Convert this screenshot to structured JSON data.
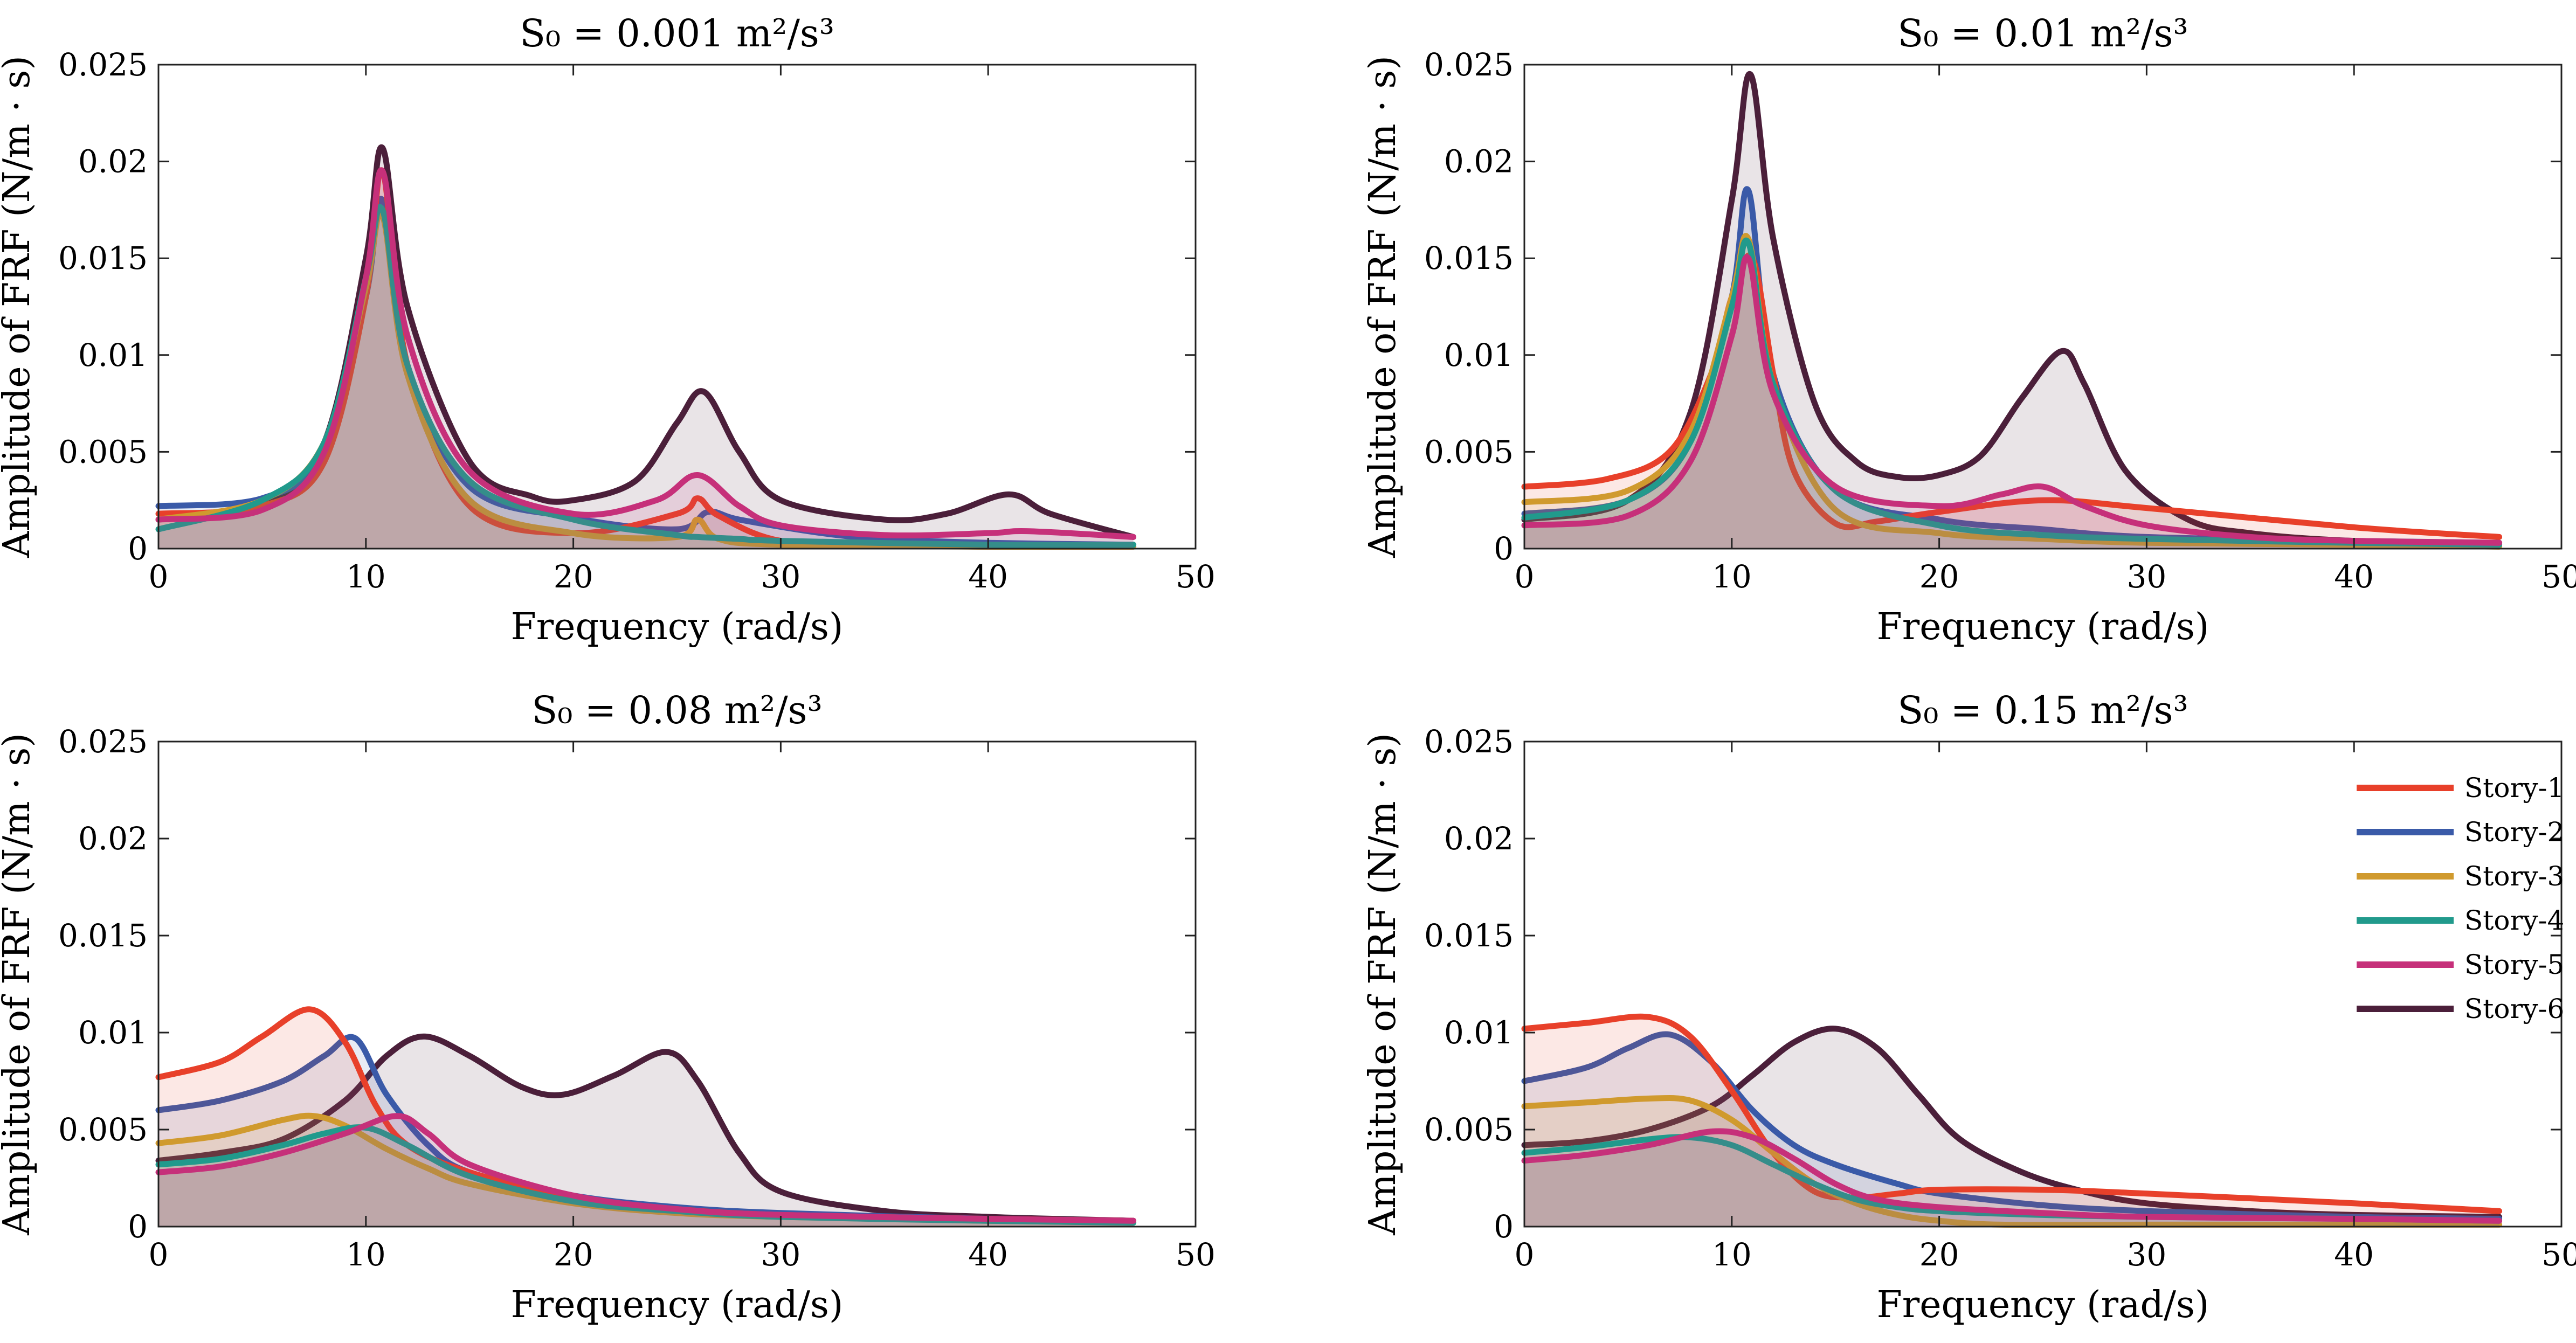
{
  "chart_data": [
    {
      "type": "line",
      "title": "S₀ = 0.001 m²/s³",
      "xlabel": "Frequency (rad/s)",
      "ylabel": "Amplitude of FRF (N/m · s)",
      "xlim": [
        0,
        50
      ],
      "ylim": [
        0,
        0.025
      ],
      "xticks": [
        "0",
        "10",
        "20",
        "30",
        "40",
        "50"
      ],
      "yticks": [
        "0",
        "0.005",
        "0.01",
        "0.015",
        "0.02",
        "0.025"
      ],
      "series": [
        {
          "name": "Story-1",
          "x": [
            0,
            5,
            8,
            10,
            10.8,
            12,
            15,
            20,
            25,
            26,
            27,
            30,
            35,
            40,
            47
          ],
          "y": [
            0.0018,
            0.0022,
            0.0045,
            0.013,
            0.0195,
            0.0095,
            0.0022,
            0.0008,
            0.0018,
            0.0026,
            0.0017,
            0.0004,
            0.0002,
            0.0001,
            0.0001
          ]
        },
        {
          "name": "Story-2",
          "x": [
            0,
            5,
            8,
            10,
            10.8,
            12,
            15,
            20,
            25,
            26.5,
            28,
            32,
            35,
            40,
            47
          ],
          "y": [
            0.0022,
            0.0026,
            0.005,
            0.013,
            0.018,
            0.0095,
            0.0032,
            0.0016,
            0.001,
            0.0019,
            0.0015,
            0.0008,
            0.0005,
            0.0003,
            0.0002
          ]
        },
        {
          "name": "Story-3",
          "x": [
            0,
            5,
            8,
            10,
            10.8,
            12,
            15,
            20,
            25,
            26,
            27,
            30,
            40,
            47
          ],
          "y": [
            0.0015,
            0.0025,
            0.0055,
            0.0135,
            0.0172,
            0.009,
            0.0025,
            0.0008,
            0.0006,
            0.0015,
            0.0005,
            0.0002,
            0.0001,
            0.0001
          ]
        },
        {
          "name": "Story-4",
          "x": [
            0,
            5,
            8,
            10,
            10.8,
            12,
            15,
            20,
            25,
            26,
            28,
            30,
            40,
            47
          ],
          "y": [
            0.001,
            0.0025,
            0.0055,
            0.014,
            0.0175,
            0.0095,
            0.0035,
            0.0015,
            0.0007,
            0.0006,
            0.0005,
            0.0004,
            0.0002,
            0.0002
          ]
        },
        {
          "name": "Story-5",
          "x": [
            0,
            5,
            8,
            10,
            10.8,
            12,
            15,
            20,
            24,
            26,
            28,
            30,
            35,
            40,
            42,
            47
          ],
          "y": [
            0.0015,
            0.002,
            0.005,
            0.014,
            0.0195,
            0.011,
            0.004,
            0.0018,
            0.0025,
            0.0038,
            0.0022,
            0.0012,
            0.0007,
            0.0008,
            0.0009,
            0.0006
          ]
        },
        {
          "name": "Story-6",
          "x": [
            0,
            5,
            8,
            10,
            10.8,
            12,
            15,
            18,
            20,
            23,
            25,
            26.3,
            28,
            30,
            35,
            38,
            41,
            43,
            47
          ],
          "y": [
            0.0015,
            0.0022,
            0.0055,
            0.015,
            0.0207,
            0.0125,
            0.0045,
            0.0027,
            0.0025,
            0.0035,
            0.0065,
            0.0081,
            0.005,
            0.0025,
            0.0015,
            0.0018,
            0.0028,
            0.0018,
            0.0006
          ]
        }
      ]
    },
    {
      "type": "line",
      "title": "S₀ = 0.01 m²/s³",
      "xlabel": "Frequency (rad/s)",
      "ylabel": "Amplitude of FRF (N/m · s)",
      "xlim": [
        0,
        50
      ],
      "ylim": [
        0,
        0.025
      ],
      "xticks": [
        "0",
        "10",
        "20",
        "30",
        "40",
        "50"
      ],
      "yticks": [
        "0",
        "0.005",
        "0.01",
        "0.015",
        "0.02",
        "0.025"
      ],
      "series": [
        {
          "name": "Story-1",
          "x": [
            0,
            4,
            7,
            9,
            10,
            11,
            12,
            13,
            15,
            17,
            20,
            25,
            30,
            40,
            47
          ],
          "y": [
            0.0032,
            0.0036,
            0.005,
            0.009,
            0.013,
            0.015,
            0.009,
            0.004,
            0.0013,
            0.0014,
            0.0019,
            0.0025,
            0.0021,
            0.0011,
            0.0006
          ]
        },
        {
          "name": "Story-2",
          "x": [
            0,
            5,
            8,
            10,
            10.8,
            12,
            15,
            20,
            25,
            30,
            40,
            47
          ],
          "y": [
            0.0018,
            0.0025,
            0.0055,
            0.013,
            0.0185,
            0.009,
            0.003,
            0.0015,
            0.001,
            0.0006,
            0.0004,
            0.0003
          ]
        },
        {
          "name": "Story-3",
          "x": [
            0,
            5,
            8,
            10,
            10.8,
            12,
            15,
            20,
            25,
            30,
            40,
            47
          ],
          "y": [
            0.0024,
            0.003,
            0.006,
            0.013,
            0.016,
            0.0085,
            0.002,
            0.0008,
            0.0005,
            0.0003,
            0.0002,
            0.0001
          ]
        },
        {
          "name": "Story-4",
          "x": [
            0,
            5,
            8,
            10,
            10.8,
            12,
            15,
            20,
            25,
            30,
            40,
            47
          ],
          "y": [
            0.0016,
            0.0025,
            0.0055,
            0.0125,
            0.0158,
            0.0085,
            0.003,
            0.0012,
            0.0007,
            0.0005,
            0.0003,
            0.0002
          ]
        },
        {
          "name": "Story-5",
          "x": [
            0,
            5,
            8,
            10,
            10.8,
            12,
            15,
            20,
            23,
            25,
            27,
            30,
            35,
            40,
            47
          ],
          "y": [
            0.0012,
            0.0017,
            0.0045,
            0.011,
            0.015,
            0.008,
            0.0032,
            0.0022,
            0.0028,
            0.0032,
            0.0022,
            0.0012,
            0.0006,
            0.0004,
            0.0003
          ]
        },
        {
          "name": "Story-6",
          "x": [
            0,
            5,
            8,
            10,
            10.9,
            12,
            14,
            16,
            18,
            20,
            22,
            24,
            25.9,
            27,
            29,
            32,
            35,
            40,
            47
          ],
          "y": [
            0.0015,
            0.0025,
            0.007,
            0.018,
            0.0245,
            0.016,
            0.0075,
            0.0045,
            0.0037,
            0.0038,
            0.0048,
            0.0078,
            0.0102,
            0.0085,
            0.004,
            0.0015,
            0.0008,
            0.0004,
            0.0003
          ]
        }
      ]
    },
    {
      "type": "line",
      "title": "S₀ = 0.08 m²/s³",
      "xlabel": "Frequency (rad/s)",
      "ylabel": "Amplitude of FRF (N/m · s)",
      "xlim": [
        0,
        50
      ],
      "ylim": [
        0,
        0.025
      ],
      "xticks": [
        "0",
        "10",
        "20",
        "30",
        "40",
        "50"
      ],
      "yticks": [
        "0",
        "0.005",
        "0.01",
        "0.015",
        "0.02",
        "0.025"
      ],
      "series": [
        {
          "name": "Story-1",
          "x": [
            0,
            3,
            5,
            7.3,
            9,
            10.5,
            12,
            15,
            20,
            25,
            30,
            40,
            47
          ],
          "y": [
            0.0077,
            0.0085,
            0.0098,
            0.0112,
            0.0095,
            0.0062,
            0.0042,
            0.0028,
            0.0015,
            0.0009,
            0.0006,
            0.0004,
            0.0003
          ]
        },
        {
          "name": "Story-2",
          "x": [
            0,
            3,
            6,
            8,
            9.5,
            11,
            13,
            15,
            20,
            25,
            30,
            40,
            47
          ],
          "y": [
            0.006,
            0.0065,
            0.0075,
            0.0088,
            0.0097,
            0.0068,
            0.0042,
            0.0028,
            0.0016,
            0.001,
            0.0007,
            0.0004,
            0.0003
          ]
        },
        {
          "name": "Story-3",
          "x": [
            0,
            3,
            6,
            7.5,
            9,
            11,
            13,
            15,
            20,
            25,
            30,
            40,
            47
          ],
          "y": [
            0.0043,
            0.0047,
            0.0055,
            0.0057,
            0.0052,
            0.004,
            0.003,
            0.0022,
            0.0012,
            0.0007,
            0.0005,
            0.0003,
            0.0002
          ]
        },
        {
          "name": "Story-4",
          "x": [
            0,
            3,
            6,
            8,
            10,
            12,
            15,
            20,
            25,
            30,
            40,
            47
          ],
          "y": [
            0.0032,
            0.0035,
            0.0042,
            0.0048,
            0.0051,
            0.0042,
            0.0026,
            0.0013,
            0.0008,
            0.0005,
            0.0003,
            0.0002
          ]
        },
        {
          "name": "Story-5",
          "x": [
            0,
            3,
            6,
            9,
            11.5,
            13,
            15,
            20,
            25,
            30,
            40,
            47
          ],
          "y": [
            0.0028,
            0.0031,
            0.0038,
            0.0048,
            0.0057,
            0.0048,
            0.0032,
            0.0016,
            0.0009,
            0.0006,
            0.0004,
            0.0003
          ]
        },
        {
          "name": "Story-6",
          "x": [
            0,
            3,
            6,
            9,
            11,
            12.8,
            15,
            17.5,
            19.5,
            22,
            24.5,
            26,
            28,
            30,
            35,
            40,
            47
          ],
          "y": [
            0.0034,
            0.0038,
            0.0045,
            0.0065,
            0.0088,
            0.0098,
            0.0088,
            0.0072,
            0.0068,
            0.0078,
            0.009,
            0.0075,
            0.0038,
            0.0018,
            0.0008,
            0.0005,
            0.0003
          ]
        }
      ]
    },
    {
      "type": "line",
      "title": "S₀ = 0.15 m²/s³",
      "xlabel": "Frequency (rad/s)",
      "ylabel": "Amplitude of FRF (N/m · s)",
      "xlim": [
        0,
        50
      ],
      "ylim": [
        0,
        0.025
      ],
      "xticks": [
        "0",
        "10",
        "20",
        "30",
        "40",
        "50"
      ],
      "yticks": [
        "0",
        "0.005",
        "0.01",
        "0.015",
        "0.02",
        "0.025"
      ],
      "series": [
        {
          "name": "Story-1",
          "x": [
            0,
            3,
            6,
            8,
            10,
            12,
            14,
            16,
            18,
            20,
            25,
            30,
            40,
            47
          ],
          "y": [
            0.0102,
            0.0105,
            0.0108,
            0.0098,
            0.007,
            0.0038,
            0.0018,
            0.0015,
            0.0017,
            0.0019,
            0.0019,
            0.0017,
            0.0012,
            0.0008
          ]
        },
        {
          "name": "Story-2",
          "x": [
            0,
            3,
            5,
            7,
            9,
            11,
            13,
            15,
            18,
            20,
            25,
            30,
            40,
            47
          ],
          "y": [
            0.0075,
            0.0082,
            0.0092,
            0.0099,
            0.0085,
            0.006,
            0.0042,
            0.0032,
            0.0022,
            0.0017,
            0.0011,
            0.0008,
            0.0005,
            0.0004
          ]
        },
        {
          "name": "Story-3",
          "x": [
            0,
            3,
            6,
            8,
            10,
            12,
            14,
            16,
            18,
            20,
            23,
            30,
            40,
            47
          ],
          "y": [
            0.0062,
            0.0064,
            0.0066,
            0.0065,
            0.0055,
            0.0038,
            0.0022,
            0.0012,
            0.0006,
            0.0003,
            0.0001,
            0.0001,
            0.0001,
            0.0001
          ]
        },
        {
          "name": "Story-4",
          "x": [
            0,
            3,
            6,
            8,
            10,
            12,
            14,
            16,
            18,
            20,
            25,
            30,
            40,
            47
          ],
          "y": [
            0.0038,
            0.0041,
            0.0045,
            0.0046,
            0.0042,
            0.0032,
            0.0022,
            0.0014,
            0.001,
            0.0008,
            0.0006,
            0.0005,
            0.0004,
            0.0003
          ]
        },
        {
          "name": "Story-5",
          "x": [
            0,
            3,
            6,
            9,
            11,
            13,
            15,
            17,
            20,
            25,
            30,
            40,
            47
          ],
          "y": [
            0.0034,
            0.0037,
            0.0042,
            0.0049,
            0.0046,
            0.0035,
            0.0022,
            0.0014,
            0.001,
            0.0007,
            0.0005,
            0.0004,
            0.0003
          ]
        },
        {
          "name": "Story-6",
          "x": [
            0,
            3,
            6,
            9,
            11,
            13,
            15,
            17,
            19,
            21,
            24,
            27,
            30,
            35,
            40,
            47
          ],
          "y": [
            0.0042,
            0.0044,
            0.005,
            0.0062,
            0.0078,
            0.0095,
            0.0102,
            0.0092,
            0.0068,
            0.0045,
            0.0028,
            0.0018,
            0.0012,
            0.0008,
            0.0006,
            0.0005
          ]
        }
      ]
    }
  ],
  "colors": {
    "Story-1": "#e8402a",
    "Story-2": "#3a5aa8",
    "Story-3": "#d09a2e",
    "Story-4": "#219a8c",
    "Story-5": "#c6307a",
    "Story-6": "#4b1f3a"
  },
  "legend": {
    "entries": [
      "Story-1",
      "Story-2",
      "Story-3",
      "Story-4",
      "Story-5",
      "Story-6"
    ],
    "position": "top-right",
    "panel": 3
  }
}
